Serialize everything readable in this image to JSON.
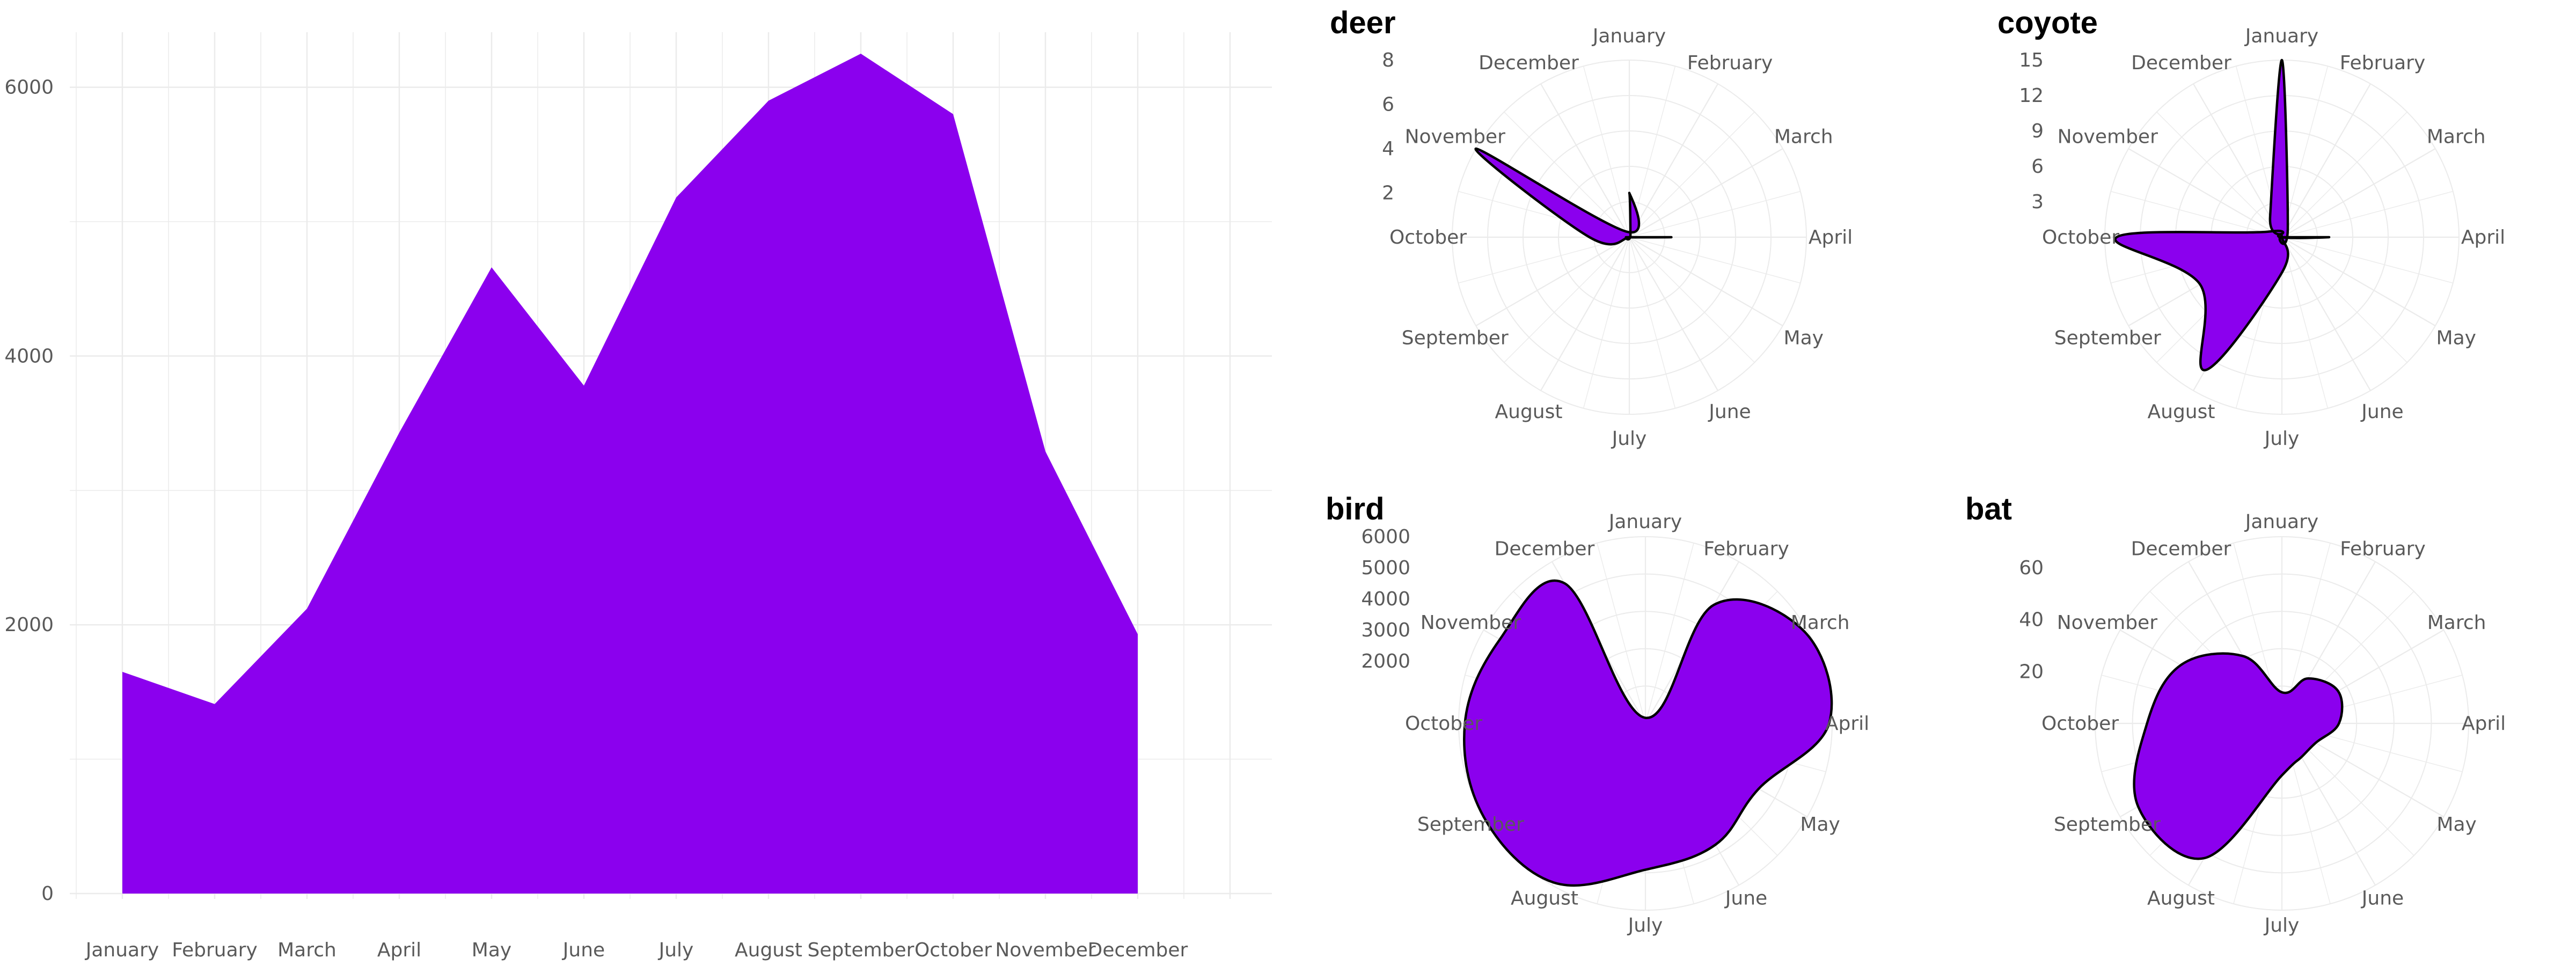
{
  "colors": {
    "fill": "#8B00EE",
    "outline": "#000000",
    "grid": "#EBEBEB",
    "text": "#5A5A5A",
    "background": "#FFFFFF"
  },
  "chart_data": [
    {
      "type": "area",
      "title": "",
      "xlabel": "",
      "ylabel": "",
      "categories": [
        "January",
        "February",
        "March",
        "April",
        "May",
        "June",
        "July",
        "August",
        "September",
        "October",
        "November",
        "December"
      ],
      "series": [
        {
          "values": [
            1650,
            1410,
            2120,
            3430,
            4660,
            3780,
            5180,
            5900,
            6250,
            5800,
            3290,
            1930
          ]
        }
      ],
      "ylim": [
        0,
        6250
      ],
      "yticks": [
        0,
        2000,
        4000,
        6000
      ],
      "grid": true
    },
    {
      "type": "area",
      "coord": "polar",
      "title": "deer",
      "categories": [
        "January",
        "February",
        "March",
        "April",
        "May",
        "June",
        "July",
        "August",
        "September",
        "October",
        "November",
        "December"
      ],
      "series": [
        {
          "values": [
            2,
            0.1,
            0,
            1.9,
            0,
            0,
            0,
            0,
            0,
            1.8,
            8,
            0.3
          ]
        }
      ],
      "rticks": [
        2,
        4,
        6,
        8
      ],
      "rlim": [
        0,
        8
      ]
    },
    {
      "type": "area",
      "coord": "polar",
      "title": "coyote",
      "categories": [
        "January",
        "February",
        "March",
        "April",
        "May",
        "June",
        "July",
        "August",
        "September",
        "October",
        "November",
        "December"
      ],
      "series": [
        {
          "values": [
            15,
            1,
            0,
            4,
            0,
            0,
            3,
            13,
            8,
            14,
            1,
            2
          ]
        }
      ],
      "rticks": [
        3,
        6,
        9,
        12,
        15
      ],
      "rlim": [
        0,
        15
      ]
    },
    {
      "type": "area",
      "coord": "polar",
      "title": "bird",
      "categories": [
        "January",
        "February",
        "March",
        "April",
        "May",
        "June",
        "July",
        "August",
        "September",
        "October",
        "November",
        "December"
      ],
      "series": [
        {
          "values": [
            180,
            4400,
            5900,
            5900,
            4200,
            4500,
            4700,
            5900,
            6000,
            5800,
            5400,
            5200
          ]
        }
      ],
      "rticks": [
        2000,
        3000,
        4000,
        5000,
        6000
      ],
      "rlim": [
        0,
        6000
      ]
    },
    {
      "type": "area",
      "coord": "polar",
      "title": "bat",
      "categories": [
        "January",
        "February",
        "March",
        "April",
        "May",
        "June",
        "July",
        "August",
        "September",
        "October",
        "November",
        "December"
      ],
      "series": [
        {
          "values": [
            12,
            20,
            25,
            22,
            15,
            15,
            20,
            60,
            64,
            52,
            45,
            30
          ]
        }
      ],
      "rticks": [
        20,
        40,
        60
      ],
      "rlim": [
        0,
        72
      ]
    }
  ]
}
